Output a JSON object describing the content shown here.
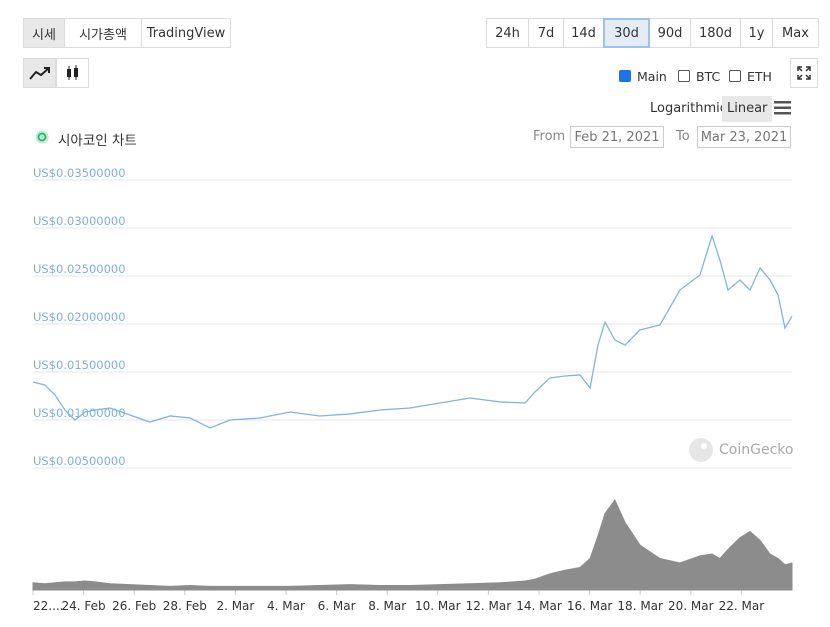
{
  "tabs": [
    "시세",
    "시가총액",
    "TradingView"
  ],
  "selected_tab": 0,
  "ranges": [
    "24h",
    "7d",
    "14d",
    "30d",
    "90d",
    "180d",
    "1y",
    "Max"
  ],
  "selected_range": 3,
  "overlays": [
    {
      "label": "Main",
      "checked": true
    },
    {
      "label": "BTC",
      "checked": false
    },
    {
      "label": "ETH",
      "checked": false
    }
  ],
  "scales": [
    "Logarithmic",
    "Linear"
  ],
  "selected_scale": 1,
  "chart_title": "시아코인 차트",
  "from_label": "From",
  "from_date": "Feb 21, 2021",
  "to_label": "To",
  "to_date": "Mar 23, 2021",
  "watermark": "CoinGecko",
  "chart_data": {
    "type": "line",
    "x": [
      1.0,
      1.47,
      1.87,
      2.26,
      2.66,
      3.06,
      3.45,
      4.04,
      4.83,
      5.62,
      6.42,
      7.21,
      8.0,
      8.79,
      9.97,
      11.16,
      12.34,
      13.53,
      14.71,
      15.9,
      17.09,
      18.27,
      19.46,
      20.45,
      20.84,
      21.43,
      22.03,
      22.62,
      23.02,
      23.33,
      23.61,
      24.0,
      24.4,
      24.99,
      25.78,
      26.57,
      27.36,
      27.84,
      28.15,
      28.47,
      28.94,
      29.34,
      29.74,
      30.13,
      30.45,
      30.72,
      31.0
    ],
    "series": [
      {
        "color": "#7fb5e3",
        "values": [
          0.01396,
          0.01365,
          0.0126,
          0.01104,
          0.01,
          0.01083,
          0.01104,
          0.01125,
          0.01052,
          0.00979,
          0.01042,
          0.01021,
          0.00917,
          0.01,
          0.01021,
          0.01083,
          0.01042,
          0.01063,
          0.01104,
          0.01125,
          0.01177,
          0.01229,
          0.01188,
          0.01177,
          0.01292,
          0.01438,
          0.01458,
          0.01469,
          0.01333,
          0.01781,
          0.02021,
          0.01833,
          0.01781,
          0.01938,
          0.0199,
          0.02354,
          0.0251,
          0.02917,
          0.02667,
          0.02354,
          0.02458,
          0.02354,
          0.02583,
          0.02458,
          0.02302,
          0.01958,
          0.02083
        ]
      },
      {
        "color": "#8c8c8c",
        "axis": "y2",
        "values": [
          8,
          7,
          8,
          9,
          9,
          10,
          9,
          7,
          6,
          5,
          4,
          5,
          4,
          4,
          4,
          4,
          5,
          6,
          5,
          5,
          6,
          7,
          8,
          10,
          12,
          18,
          22,
          25,
          35,
          60,
          85,
          100,
          75,
          50,
          35,
          30,
          38,
          40,
          35,
          45,
          58,
          65,
          55,
          40,
          35,
          28,
          30
        ]
      }
    ],
    "xlim": [
      1,
      31
    ],
    "xticks": [
      {
        "value": 1,
        "label": "22...."
      },
      {
        "value": 3,
        "label": "24. Feb"
      },
      {
        "value": 5,
        "label": "26. Feb"
      },
      {
        "value": 7,
        "label": "28. Feb"
      },
      {
        "value": 9,
        "label": "2. Mar"
      },
      {
        "value": 11,
        "label": "4. Mar"
      },
      {
        "value": 13,
        "label": "6. Mar"
      },
      {
        "value": 15,
        "label": "8. Mar"
      },
      {
        "value": 17,
        "label": "10. Mar"
      },
      {
        "value": 19,
        "label": "12. Mar"
      },
      {
        "value": 21,
        "label": "14. Mar"
      },
      {
        "value": 23,
        "label": "16. Mar"
      },
      {
        "value": 25,
        "label": "18. Mar"
      },
      {
        "value": 27,
        "label": "20. Mar"
      },
      {
        "value": 29,
        "label": "22. Mar"
      }
    ],
    "ylim": [
      0.005,
      0.035
    ],
    "yticks": [
      {
        "value": 0.035,
        "label": "US$0.03500000"
      },
      {
        "value": 0.03,
        "label": "US$0.03000000"
      },
      {
        "value": 0.025,
        "label": "US$0.02500000"
      },
      {
        "value": 0.02,
        "label": "US$0.02000000"
      },
      {
        "value": 0.015,
        "label": "US$0.01500000"
      },
      {
        "value": 0.01,
        "label": "US$0.01000000"
      },
      {
        "value": 0.005,
        "label": "US$0.00500000"
      }
    ],
    "y2lim": [
      0,
      100
    ],
    "grid": true
  }
}
